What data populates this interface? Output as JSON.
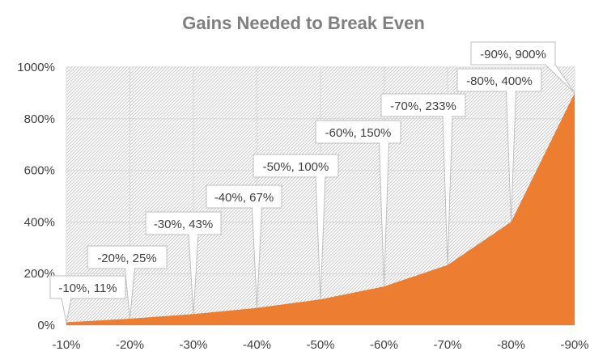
{
  "chart_data": {
    "type": "area",
    "title": "Gains Needed to Break Even",
    "xlabel": "",
    "ylabel": "",
    "categories": [
      "-10%",
      "-20%",
      "-30%",
      "-40%",
      "-50%",
      "-60%",
      "-70%",
      "-80%",
      "-90%"
    ],
    "values": [
      11,
      25,
      43,
      67,
      100,
      150,
      233,
      400,
      900
    ],
    "data_labels": [
      "-10%, 11%",
      "-20%, 25%",
      "-30%, 43%",
      "-40%, 67%",
      "-50%, 100%",
      "-60%, 150%",
      "-70%, 233%",
      "-80%, 400%",
      "-90%, 900%"
    ],
    "ylim": [
      0,
      1000
    ],
    "yticks": [
      0,
      200,
      400,
      600,
      800,
      1000
    ],
    "ytick_labels": [
      "0%",
      "200%",
      "400%",
      "600%",
      "800%",
      "1000%"
    ],
    "grid": true,
    "colors": {
      "area": "#ed7d31",
      "grid": "#d9d9d9",
      "hatch": "#bfbfbf",
      "callout_border": "#bfbfbf",
      "title": "#7f7f7f"
    }
  }
}
